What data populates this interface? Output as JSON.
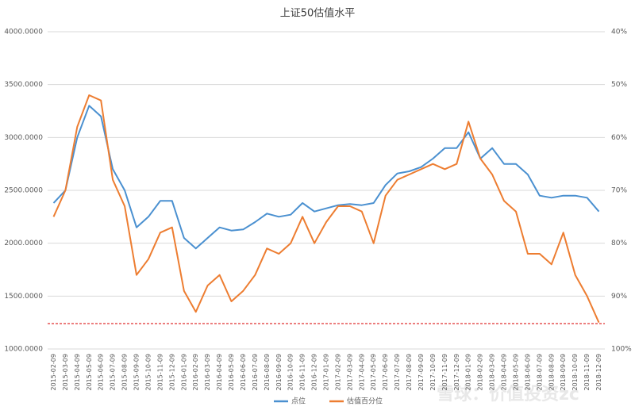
{
  "chart_data": {
    "type": "line",
    "title": "上证50估值水平",
    "x": [
      "2015-02-09",
      "2015-03-09",
      "2015-04-09",
      "2015-05-09",
      "2015-06-09",
      "2015-07-09",
      "2015-08-09",
      "2015-09-09",
      "2015-10-09",
      "2015-11-09",
      "2015-12-09",
      "2016-01-09",
      "2016-02-09",
      "2016-03-09",
      "2016-04-09",
      "2016-05-09",
      "2016-06-09",
      "2016-07-09",
      "2016-08-09",
      "2016-09-09",
      "2016-10-09",
      "2016-11-09",
      "2016-12-09",
      "2017-01-09",
      "2017-02-09",
      "2017-03-09",
      "2017-04-09",
      "2017-05-09",
      "2017-06-09",
      "2017-07-09",
      "2017-08-09",
      "2017-09-09",
      "2017-10-09",
      "2017-11-09",
      "2017-12-09",
      "2018-01-09",
      "2018-02-09",
      "2018-03-09",
      "2018-04-09",
      "2018-05-09",
      "2018-06-09",
      "2018-07-09",
      "2018-08-09",
      "2018-09-09",
      "2018-10-09",
      "2018-11-09",
      "2018-12-09"
    ],
    "series": [
      {
        "name": "点位",
        "color": "#4a90d0",
        "values": [
          2380,
          2500,
          3000,
          3300,
          3200,
          2700,
          2500,
          2150,
          2250,
          2400,
          2400,
          2050,
          1950,
          2050,
          2150,
          2120,
          2130,
          2200,
          2280,
          2250,
          2270,
          2380,
          2300,
          2330,
          2360,
          2370,
          2360,
          2380,
          2550,
          2660,
          2680,
          2720,
          2800,
          2900,
          2900,
          3050,
          2800,
          2900,
          2750,
          2750,
          2650,
          2450,
          2430,
          2450,
          2450,
          2430,
          2300
        ]
      },
      {
        "name": "估值百分位",
        "color": "#ed7d31",
        "axis": "y2",
        "values": [
          75,
          70,
          58,
          52,
          53,
          68,
          73,
          86,
          83,
          78,
          77,
          89,
          93,
          88,
          86,
          91,
          89,
          86,
          81,
          82,
          80,
          75,
          80,
          76,
          73,
          73,
          74,
          80,
          71,
          68,
          67,
          66,
          65,
          66,
          65,
          57,
          64,
          67,
          72,
          74,
          82,
          82,
          84,
          78,
          86,
          90,
          95
        ]
      }
    ],
    "ylim": [
      1000,
      4000
    ],
    "yticks": [
      {
        "value": 1000,
        "label": "1000.0000"
      },
      {
        "value": 1500,
        "label": "1500.0000"
      },
      {
        "value": 2000,
        "label": "2000.0000"
      },
      {
        "value": 2500,
        "label": "2500.0000"
      },
      {
        "value": 3000,
        "label": "3000.0000"
      },
      {
        "value": 3500,
        "label": "3500.0000"
      },
      {
        "value": 4000,
        "label": "4000.0000"
      }
    ],
    "y2lim": [
      100,
      40
    ],
    "y2ticks": [
      {
        "value": 40,
        "label": "40%"
      },
      {
        "value": 50,
        "label": "50%"
      },
      {
        "value": 60,
        "label": "60%"
      },
      {
        "value": 70,
        "label": "70%"
      },
      {
        "value": 80,
        "label": "80%"
      },
      {
        "value": 90,
        "label": "90%"
      },
      {
        "value": 100,
        "label": "100%"
      }
    ],
    "grid": true,
    "hlines": [
      {
        "value": 1240,
        "color": "#e03030"
      }
    ],
    "legend": "bottom",
    "watermark": "雪球：价值投资zc"
  }
}
